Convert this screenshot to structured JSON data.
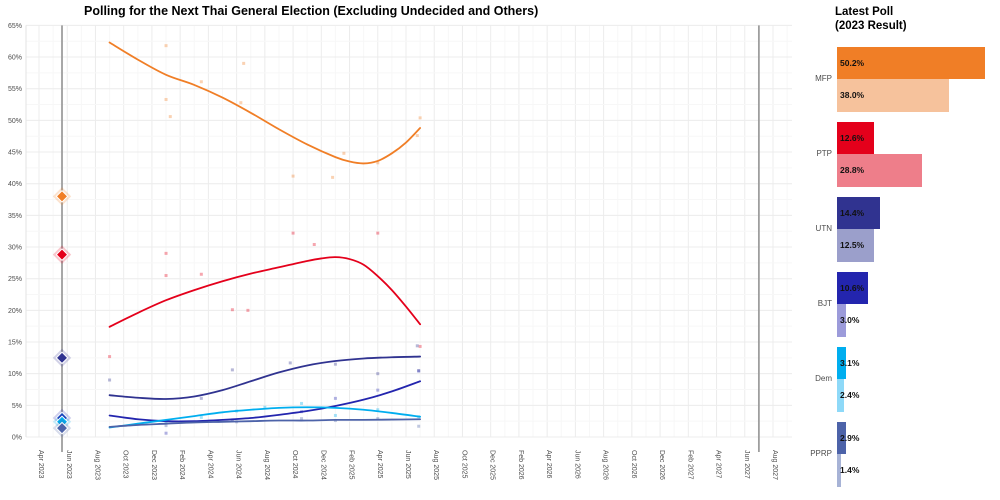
{
  "title": "Polling for the Next Thai General Election (Excluding Undecided and Others)",
  "right_panel": {
    "title_line1": "Latest Poll",
    "title_line2": "(2023 Result)"
  },
  "chart_data": {
    "type": "line",
    "title": "Polling for the Next Thai General Election (Excluding Undecided and Others)",
    "legend_position": "none",
    "grid": true,
    "ylim": [
      0,
      65
    ],
    "y_ticks": [
      "0%",
      "5%",
      "10%",
      "15%",
      "20%",
      "25%",
      "30%",
      "35%",
      "40%",
      "45%",
      "50%",
      "55%",
      "60%",
      "65%"
    ],
    "x_ticks": [
      "Apr 2023",
      "Jun 2023",
      "Aug 2023",
      "Oct 2023",
      "Dec 2023",
      "Feb 2024",
      "Apr 2024",
      "Jun 2024",
      "Aug 2024",
      "Oct 2024",
      "Dec 2024",
      "Feb 2025",
      "Apr 2025",
      "Jun 2025",
      "Aug 2025",
      "Oct 2025",
      "Dec 2025",
      "Feb 2026",
      "Apr 2026",
      "Jun 2026",
      "Aug 2026",
      "Oct 2026",
      "Dec 2026",
      "Feb 2027",
      "Apr 2027",
      "Jun 2027",
      "Aug 2027"
    ],
    "x_months_total": 52,
    "election_lines": [
      {
        "name": "2023-election",
        "month": 1.63,
        "color": "#9e9e9e"
      },
      {
        "name": "next-election",
        "month": 51.0,
        "color": "#9e9e9e"
      }
    ],
    "result_marker_month": 1.63,
    "series": [
      {
        "name": "MFP",
        "color": "#F07E26",
        "color_light": "#F6C29C",
        "latest_poll": 50.2,
        "result_2023": 38.0,
        "trend": [
          [
            5,
            62.3
          ],
          [
            7,
            59.6
          ],
          [
            9,
            57.2
          ],
          [
            11,
            55.6
          ],
          [
            13,
            53.6
          ],
          [
            15,
            51.2
          ],
          [
            17,
            48.6
          ],
          [
            19,
            46.2
          ],
          [
            21,
            44.2
          ],
          [
            22,
            43.5
          ],
          [
            23,
            43.2
          ],
          [
            24,
            43.6
          ],
          [
            25,
            44.8
          ],
          [
            26,
            46.5
          ],
          [
            27,
            48.8
          ]
        ],
        "scatter": [
          [
            9,
            61.8
          ],
          [
            9,
            53.3
          ],
          [
            9.3,
            50.6
          ],
          [
            11.5,
            56.1
          ],
          [
            14.5,
            59.0
          ],
          [
            14.3,
            52.8
          ],
          [
            18,
            41.2
          ],
          [
            20.8,
            41.0
          ],
          [
            21.6,
            44.8
          ],
          [
            24,
            43.3
          ],
          [
            26.8,
            47.6
          ],
          [
            27,
            50.4
          ]
        ]
      },
      {
        "name": "PTP",
        "color": "#E4001B",
        "color_light": "#EE7E8A",
        "latest_poll": 12.6,
        "result_2023": 28.8,
        "trend": [
          [
            5,
            17.4
          ],
          [
            7,
            19.6
          ],
          [
            9,
            21.6
          ],
          [
            11,
            23.2
          ],
          [
            13,
            24.6
          ],
          [
            15,
            25.8
          ],
          [
            17,
            26.8
          ],
          [
            19,
            27.8
          ],
          [
            20,
            28.2
          ],
          [
            21,
            28.4
          ],
          [
            22,
            28.1
          ],
          [
            23,
            27.2
          ],
          [
            24,
            25.4
          ],
          [
            25,
            23.2
          ],
          [
            26,
            20.6
          ],
          [
            27,
            17.8
          ]
        ],
        "scatter": [
          [
            5,
            12.7
          ],
          [
            9,
            29.0
          ],
          [
            9,
            25.5
          ],
          [
            11.5,
            25.7
          ],
          [
            13.7,
            20.1
          ],
          [
            14.8,
            20.0
          ],
          [
            18,
            32.2
          ],
          [
            19.5,
            30.4
          ],
          [
            24,
            32.2
          ],
          [
            27,
            14.3
          ]
        ]
      },
      {
        "name": "UTN",
        "color": "#303390",
        "color_light": "#9B9FCB",
        "latest_poll": 14.4,
        "result_2023": 12.5,
        "trend": [
          [
            5,
            6.6
          ],
          [
            7,
            6.2
          ],
          [
            9,
            6.0
          ],
          [
            11,
            6.4
          ],
          [
            13,
            7.4
          ],
          [
            15,
            8.8
          ],
          [
            17,
            10.2
          ],
          [
            19,
            11.3
          ],
          [
            21,
            12.0
          ],
          [
            23,
            12.4
          ],
          [
            25,
            12.6
          ],
          [
            27,
            12.7
          ]
        ],
        "scatter": [
          [
            5,
            9.0
          ],
          [
            11.5,
            6.1
          ],
          [
            13.7,
            10.6
          ],
          [
            17.8,
            11.7
          ],
          [
            21,
            11.5
          ],
          [
            24,
            10.0
          ],
          [
            26.8,
            14.4
          ],
          [
            26.9,
            10.5
          ]
        ]
      },
      {
        "name": "BJT",
        "color": "#2325AE",
        "color_light": "#9C9BDA",
        "latest_poll": 10.6,
        "result_2023": 3.0,
        "trend": [
          [
            5,
            3.4
          ],
          [
            7,
            2.8
          ],
          [
            9,
            2.5
          ],
          [
            11,
            2.5
          ],
          [
            13,
            2.7
          ],
          [
            15,
            3.0
          ],
          [
            17,
            3.5
          ],
          [
            19,
            4.1
          ],
          [
            21,
            4.9
          ],
          [
            23,
            5.9
          ],
          [
            25,
            7.2
          ],
          [
            27,
            8.8
          ]
        ],
        "scatter": [
          [
            9,
            0.6
          ],
          [
            13.7,
            2.7
          ],
          [
            18.6,
            4.0
          ],
          [
            21,
            6.1
          ],
          [
            24,
            7.4
          ],
          [
            26.9,
            10.4
          ]
        ]
      },
      {
        "name": "Dem",
        "color": "#00AEEF",
        "color_light": "#8ED9F8",
        "latest_poll": 3.1,
        "result_2023": 2.4,
        "trend": [
          [
            5,
            1.5
          ],
          [
            7,
            2.1
          ],
          [
            9,
            2.7
          ],
          [
            11,
            3.3
          ],
          [
            13,
            3.9
          ],
          [
            15,
            4.3
          ],
          [
            17,
            4.6
          ],
          [
            19,
            4.7
          ],
          [
            21,
            4.6
          ],
          [
            23,
            4.3
          ],
          [
            25,
            3.8
          ],
          [
            27,
            3.2
          ]
        ],
        "scatter": [
          [
            9,
            2.3
          ],
          [
            11.5,
            3.1
          ],
          [
            14,
            4.1
          ],
          [
            16,
            4.7
          ],
          [
            18.6,
            5.3
          ],
          [
            21,
            3.4
          ],
          [
            24,
            4.3
          ],
          [
            26.9,
            3.2
          ]
        ]
      },
      {
        "name": "PPRP",
        "color": "#4D63A9",
        "color_light": "#A7B3D6",
        "latest_poll": 2.9,
        "result_2023": 1.4,
        "trend": [
          [
            5,
            1.6
          ],
          [
            7,
            1.9
          ],
          [
            9,
            2.1
          ],
          [
            11,
            2.3
          ],
          [
            13,
            2.4
          ],
          [
            15,
            2.5
          ],
          [
            17,
            2.6
          ],
          [
            19,
            2.6
          ],
          [
            21,
            2.7
          ],
          [
            23,
            2.7
          ],
          [
            25,
            2.75
          ],
          [
            27,
            2.8
          ]
        ],
        "scatter": [
          [
            9,
            1.8
          ],
          [
            14,
            2.4
          ],
          [
            18.6,
            2.9
          ],
          [
            21,
            2.6
          ],
          [
            24,
            2.9
          ],
          [
            26.9,
            1.7
          ]
        ]
      }
    ]
  }
}
